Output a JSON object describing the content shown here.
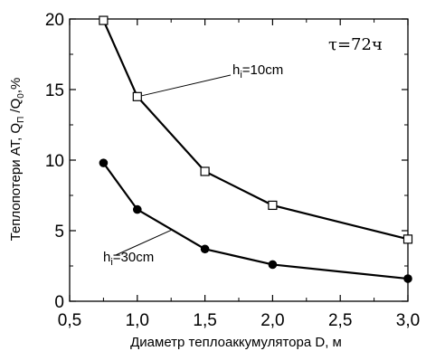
{
  "chart_data": {
    "type": "line",
    "xlabel": "Диаметр теплоаккумулятора D, м",
    "ylabel_parts": [
      "Теплопотери АТ, Q",
      "П",
      " /Q",
      "0",
      ",%"
    ],
    "xlim": [
      0.5,
      3.0
    ],
    "ylim": [
      0,
      20
    ],
    "x_ticks": [
      0.5,
      1.0,
      1.5,
      2.0,
      2.5,
      3.0
    ],
    "x_tick_labels": [
      "0,5",
      "1,0",
      "1,5",
      "2,0",
      "2,5",
      "3,0"
    ],
    "y_ticks": [
      0,
      5,
      10,
      15,
      20
    ],
    "y_tick_labels": [
      "0",
      "5",
      "10",
      "15",
      "20"
    ],
    "grid": false,
    "series": [
      {
        "label_parts": [
          "h",
          "i",
          "=10cm"
        ],
        "marker": "open-square",
        "x": [
          0.75,
          1.0,
          1.5,
          2.0,
          3.0
        ],
        "y": [
          19.9,
          14.5,
          9.2,
          6.8,
          4.4
        ]
      },
      {
        "label_parts": [
          "h",
          "i",
          "=30cm"
        ],
        "marker": "filled-circle",
        "x": [
          0.75,
          1.0,
          1.5,
          2.0,
          3.0
        ],
        "y": [
          9.8,
          6.5,
          3.7,
          2.6,
          1.6
        ]
      }
    ],
    "annotation": {
      "symbol": "τ",
      "text": "=72ч"
    }
  }
}
